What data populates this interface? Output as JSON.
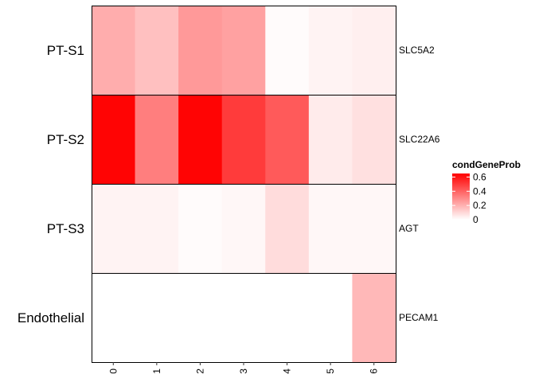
{
  "chart_data": {
    "type": "heatmap",
    "columns": [
      "0",
      "1",
      "2",
      "3",
      "4",
      "5",
      "6"
    ],
    "rows": [
      {
        "label": "PT-S1",
        "gene": "SLC5A2",
        "values": [
          0.21,
          0.16,
          0.26,
          0.24,
          0.01,
          0.03,
          0.04
        ]
      },
      {
        "label": "PT-S2",
        "gene": "SLC22A6",
        "values": [
          0.64,
          0.33,
          0.64,
          0.5,
          0.42,
          0.05,
          0.08
        ]
      },
      {
        "label": "PT-S3",
        "gene": "AGT",
        "values": [
          0.03,
          0.03,
          0.01,
          0.02,
          0.09,
          0.02,
          0.02
        ]
      },
      {
        "label": "Endothelial",
        "gene": "PECAM1",
        "values": [
          0.0,
          0.0,
          0.0,
          0.0,
          0.0,
          0.0,
          0.18
        ]
      }
    ],
    "legend": {
      "title": "condGeneProb",
      "ticks": [
        "0",
        "0.2",
        "0.4",
        "0.6"
      ],
      "tick_values": [
        0,
        0.2,
        0.4,
        0.6
      ],
      "range": [
        0,
        0.65
      ],
      "low_color": "#ffffff",
      "high_color": "#ff0000",
      "placement": "right"
    },
    "grid": false
  }
}
